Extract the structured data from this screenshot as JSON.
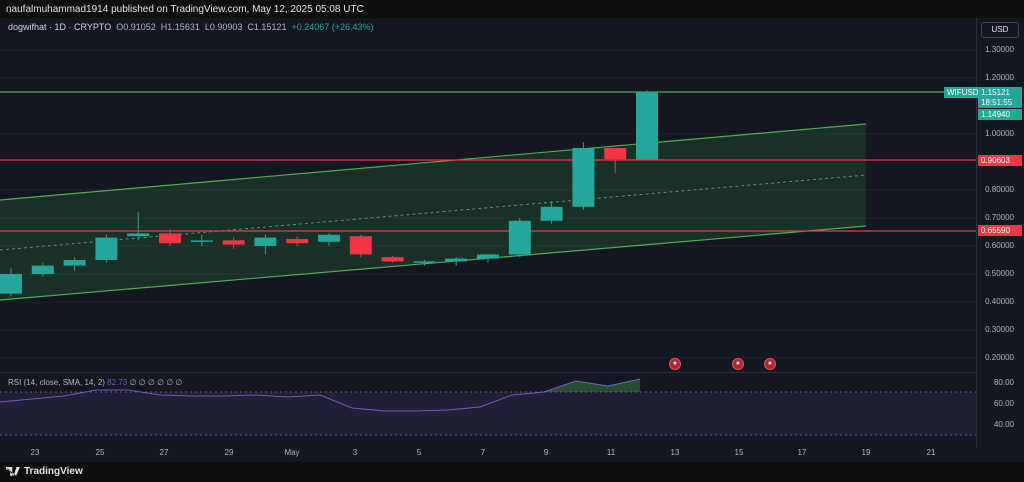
{
  "header": {
    "publish_text": "naufalmuhammad1914 published on TradingView.com, May 12, 2025 05:08 UTC"
  },
  "legend": {
    "symbol": "dogwifhat · 1D · CRYPTO",
    "open": "O0.91052",
    "high": "H1.15631",
    "low": "L0.90903",
    "close": "C1.15121",
    "change": "+0.24067 (+26.43%)"
  },
  "currency": "USD",
  "price_axis": [
    "1.30000",
    "1.20000",
    "1.00000",
    "0.80000",
    "0.70000",
    "0.60000",
    "0.50000",
    "0.40000",
    "0.30000",
    "0.20000"
  ],
  "price_tags": {
    "symbol_label": "WIFUSD",
    "last_price": "1.15121",
    "countdown": "18:51:55",
    "prev_price": "1.14940",
    "level_red_1": "0.90603",
    "level_red_2": "0.65590"
  },
  "rsi": {
    "label": "RSI (14, close, SMA, 14, 2)",
    "value": "82.73",
    "extra": "∅ ∅ ∅ ∅ ∅ ∅",
    "axis": [
      "80.00",
      "60.00",
      "40.00"
    ]
  },
  "time_axis": [
    "23",
    "25",
    "27",
    "29",
    "May",
    "3",
    "5",
    "7",
    "9",
    "11",
    "13",
    "15",
    "17",
    "19",
    "21"
  ],
  "footer": {
    "brand": "TradingView"
  },
  "colors": {
    "up": "#26a69a",
    "down": "#f23645",
    "channel": "#4caf50",
    "level": "#f23645",
    "rsi": "#7e57c2"
  },
  "chart_data": {
    "type": "candlestick",
    "symbol": "WIFUSD",
    "interval": "1D",
    "candles": [
      {
        "o": 0.43,
        "h": 0.52,
        "l": 0.42,
        "c": 0.5
      },
      {
        "o": 0.5,
        "h": 0.54,
        "l": 0.49,
        "c": 0.53
      },
      {
        "o": 0.53,
        "h": 0.56,
        "l": 0.51,
        "c": 0.55
      },
      {
        "o": 0.55,
        "h": 0.64,
        "l": 0.54,
        "c": 0.63
      },
      {
        "o": 0.635,
        "h": 0.72,
        "l": 0.62,
        "c": 0.645
      },
      {
        "o": 0.645,
        "h": 0.66,
        "l": 0.6,
        "c": 0.61
      },
      {
        "o": 0.615,
        "h": 0.64,
        "l": 0.6,
        "c": 0.62
      },
      {
        "o": 0.62,
        "h": 0.63,
        "l": 0.59,
        "c": 0.605
      },
      {
        "o": 0.6,
        "h": 0.64,
        "l": 0.57,
        "c": 0.63
      },
      {
        "o": 0.625,
        "h": 0.635,
        "l": 0.6,
        "c": 0.61
      },
      {
        "o": 0.615,
        "h": 0.645,
        "l": 0.6,
        "c": 0.64
      },
      {
        "o": 0.635,
        "h": 0.64,
        "l": 0.56,
        "c": 0.57
      },
      {
        "o": 0.56,
        "h": 0.565,
        "l": 0.54,
        "c": 0.545
      },
      {
        "o": 0.545,
        "h": 0.55,
        "l": 0.53,
        "c": 0.545
      },
      {
        "o": 0.545,
        "h": 0.56,
        "l": 0.53,
        "c": 0.555
      },
      {
        "o": 0.555,
        "h": 0.57,
        "l": 0.54,
        "c": 0.57
      },
      {
        "o": 0.57,
        "h": 0.7,
        "l": 0.56,
        "c": 0.69
      },
      {
        "o": 0.69,
        "h": 0.76,
        "l": 0.68,
        "c": 0.74
      },
      {
        "o": 0.74,
        "h": 0.97,
        "l": 0.73,
        "c": 0.95
      },
      {
        "o": 0.95,
        "h": 0.95,
        "l": 0.86,
        "c": 0.91
      },
      {
        "o": 0.909,
        "h": 1.156,
        "l": 0.909,
        "c": 1.151
      }
    ],
    "levels": [
      0.90603,
      0.6559
    ],
    "ylim": [
      0.15,
      1.35
    ]
  }
}
